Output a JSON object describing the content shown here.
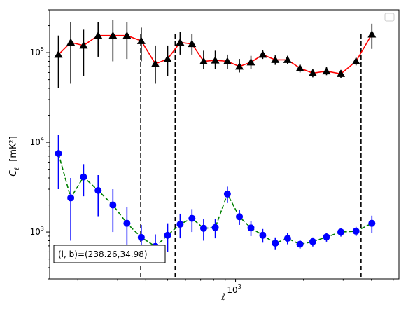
{
  "chart_data": {
    "type": "scatter",
    "x_scale": "log",
    "y_scale": "log",
    "xlabel": "ℓ",
    "ylabel_main": "C",
    "ylabel_sub": "ℓ",
    "ylabel_unit": "[mK²]",
    "xlim": [
      150,
      5300
    ],
    "ylim": [
      300,
      300000
    ],
    "x_tick_major": [
      {
        "value": 1000,
        "label": "10",
        "exp": "3"
      }
    ],
    "y_tick_major": [
      {
        "value": 1000,
        "label": "10",
        "exp": "3"
      },
      {
        "value": 10000,
        "label": "10",
        "exp": "4"
      },
      {
        "value": 100000,
        "label": "10",
        "exp": "5"
      }
    ],
    "vlines": [
      380,
      540,
      3600
    ],
    "annotation": "(l, b)=(238.26,34.98)",
    "legend_placement": "top-right",
    "series": [
      {
        "marker": "triangle",
        "marker_color": "#000000",
        "line_color": "#ff0000",
        "line_style": "solid",
        "points": [
          {
            "x": 164,
            "y": 95000,
            "lo": 40000,
            "hi": 155000
          },
          {
            "x": 186,
            "y": 130000,
            "lo": 45000,
            "hi": 220000
          },
          {
            "x": 212,
            "y": 120000,
            "lo": 55000,
            "hi": 180000
          },
          {
            "x": 246,
            "y": 155000,
            "lo": 90000,
            "hi": 220000
          },
          {
            "x": 286,
            "y": 155000,
            "lo": 80000,
            "hi": 230000
          },
          {
            "x": 330,
            "y": 155000,
            "lo": 85000,
            "hi": 220000
          },
          {
            "x": 382,
            "y": 135000,
            "lo": 80000,
            "hi": 190000
          },
          {
            "x": 441,
            "y": 75000,
            "lo": 45000,
            "hi": 120000
          },
          {
            "x": 500,
            "y": 85000,
            "lo": 55000,
            "hi": 120000
          },
          {
            "x": 568,
            "y": 130000,
            "lo": 95000,
            "hi": 170000
          },
          {
            "x": 641,
            "y": 125000,
            "lo": 95000,
            "hi": 160000
          },
          {
            "x": 722,
            "y": 80000,
            "lo": 65000,
            "hi": 105000
          },
          {
            "x": 813,
            "y": 82000,
            "lo": 65000,
            "hi": 105000
          },
          {
            "x": 920,
            "y": 80000,
            "lo": 65000,
            "hi": 95000
          },
          {
            "x": 1040,
            "y": 70000,
            "lo": 60000,
            "hi": 85000
          },
          {
            "x": 1170,
            "y": 78000,
            "lo": 65000,
            "hi": 92000
          },
          {
            "x": 1320,
            "y": 95000,
            "lo": 85000,
            "hi": 107000
          },
          {
            "x": 1500,
            "y": 83000,
            "lo": 73000,
            "hi": 93000
          },
          {
            "x": 1700,
            "y": 83000,
            "lo": 74000,
            "hi": 92000
          },
          {
            "x": 1930,
            "y": 67000,
            "lo": 60000,
            "hi": 75000
          },
          {
            "x": 2200,
            "y": 59000,
            "lo": 53000,
            "hi": 66000
          },
          {
            "x": 2530,
            "y": 62000,
            "lo": 56000,
            "hi": 69000
          },
          {
            "x": 2930,
            "y": 58000,
            "lo": 52000,
            "hi": 64000
          },
          {
            "x": 3420,
            "y": 80000,
            "lo": 72000,
            "hi": 88000
          },
          {
            "x": 4020,
            "y": 160000,
            "lo": 110000,
            "hi": 210000
          }
        ]
      },
      {
        "marker": "circle",
        "marker_color": "#0000ff",
        "line_color": "#008000",
        "line_style": "dashed",
        "points": [
          {
            "x": 164,
            "y": 7500,
            "lo": 3000,
            "hi": 12000
          },
          {
            "x": 186,
            "y": 2400,
            "lo": 800,
            "hi": 4000
          },
          {
            "x": 212,
            "y": 4100,
            "lo": 2500,
            "hi": 5700
          },
          {
            "x": 246,
            "y": 2900,
            "lo": 1500,
            "hi": 4300
          },
          {
            "x": 286,
            "y": 2000,
            "lo": 1000,
            "hi": 3000
          },
          {
            "x": 330,
            "y": 1250,
            "lo": 600,
            "hi": 1900
          },
          {
            "x": 382,
            "y": 870,
            "lo": 550,
            "hi": 1200
          },
          {
            "x": 441,
            "y": 690,
            "lo": 450,
            "hi": 940
          },
          {
            "x": 500,
            "y": 920,
            "lo": 600,
            "hi": 1250
          },
          {
            "x": 568,
            "y": 1220,
            "lo": 850,
            "hi": 1600
          },
          {
            "x": 641,
            "y": 1420,
            "lo": 1000,
            "hi": 1800
          },
          {
            "x": 722,
            "y": 1100,
            "lo": 800,
            "hi": 1400
          },
          {
            "x": 813,
            "y": 1120,
            "lo": 850,
            "hi": 1400
          },
          {
            "x": 920,
            "y": 2650,
            "lo": 2100,
            "hi": 3200
          },
          {
            "x": 1040,
            "y": 1480,
            "lo": 1200,
            "hi": 1750
          },
          {
            "x": 1170,
            "y": 1110,
            "lo": 900,
            "hi": 1320
          },
          {
            "x": 1320,
            "y": 920,
            "lo": 760,
            "hi": 1080
          },
          {
            "x": 1500,
            "y": 750,
            "lo": 630,
            "hi": 870
          },
          {
            "x": 1700,
            "y": 850,
            "lo": 730,
            "hi": 970
          },
          {
            "x": 1930,
            "y": 730,
            "lo": 640,
            "hi": 820
          },
          {
            "x": 2200,
            "y": 780,
            "lo": 690,
            "hi": 870
          },
          {
            "x": 2530,
            "y": 880,
            "lo": 780,
            "hi": 980
          },
          {
            "x": 2930,
            "y": 1000,
            "lo": 890,
            "hi": 1110
          },
          {
            "x": 3420,
            "y": 1020,
            "lo": 900,
            "hi": 1140
          },
          {
            "x": 4020,
            "y": 1250,
            "lo": 980,
            "hi": 1520
          }
        ]
      }
    ]
  }
}
